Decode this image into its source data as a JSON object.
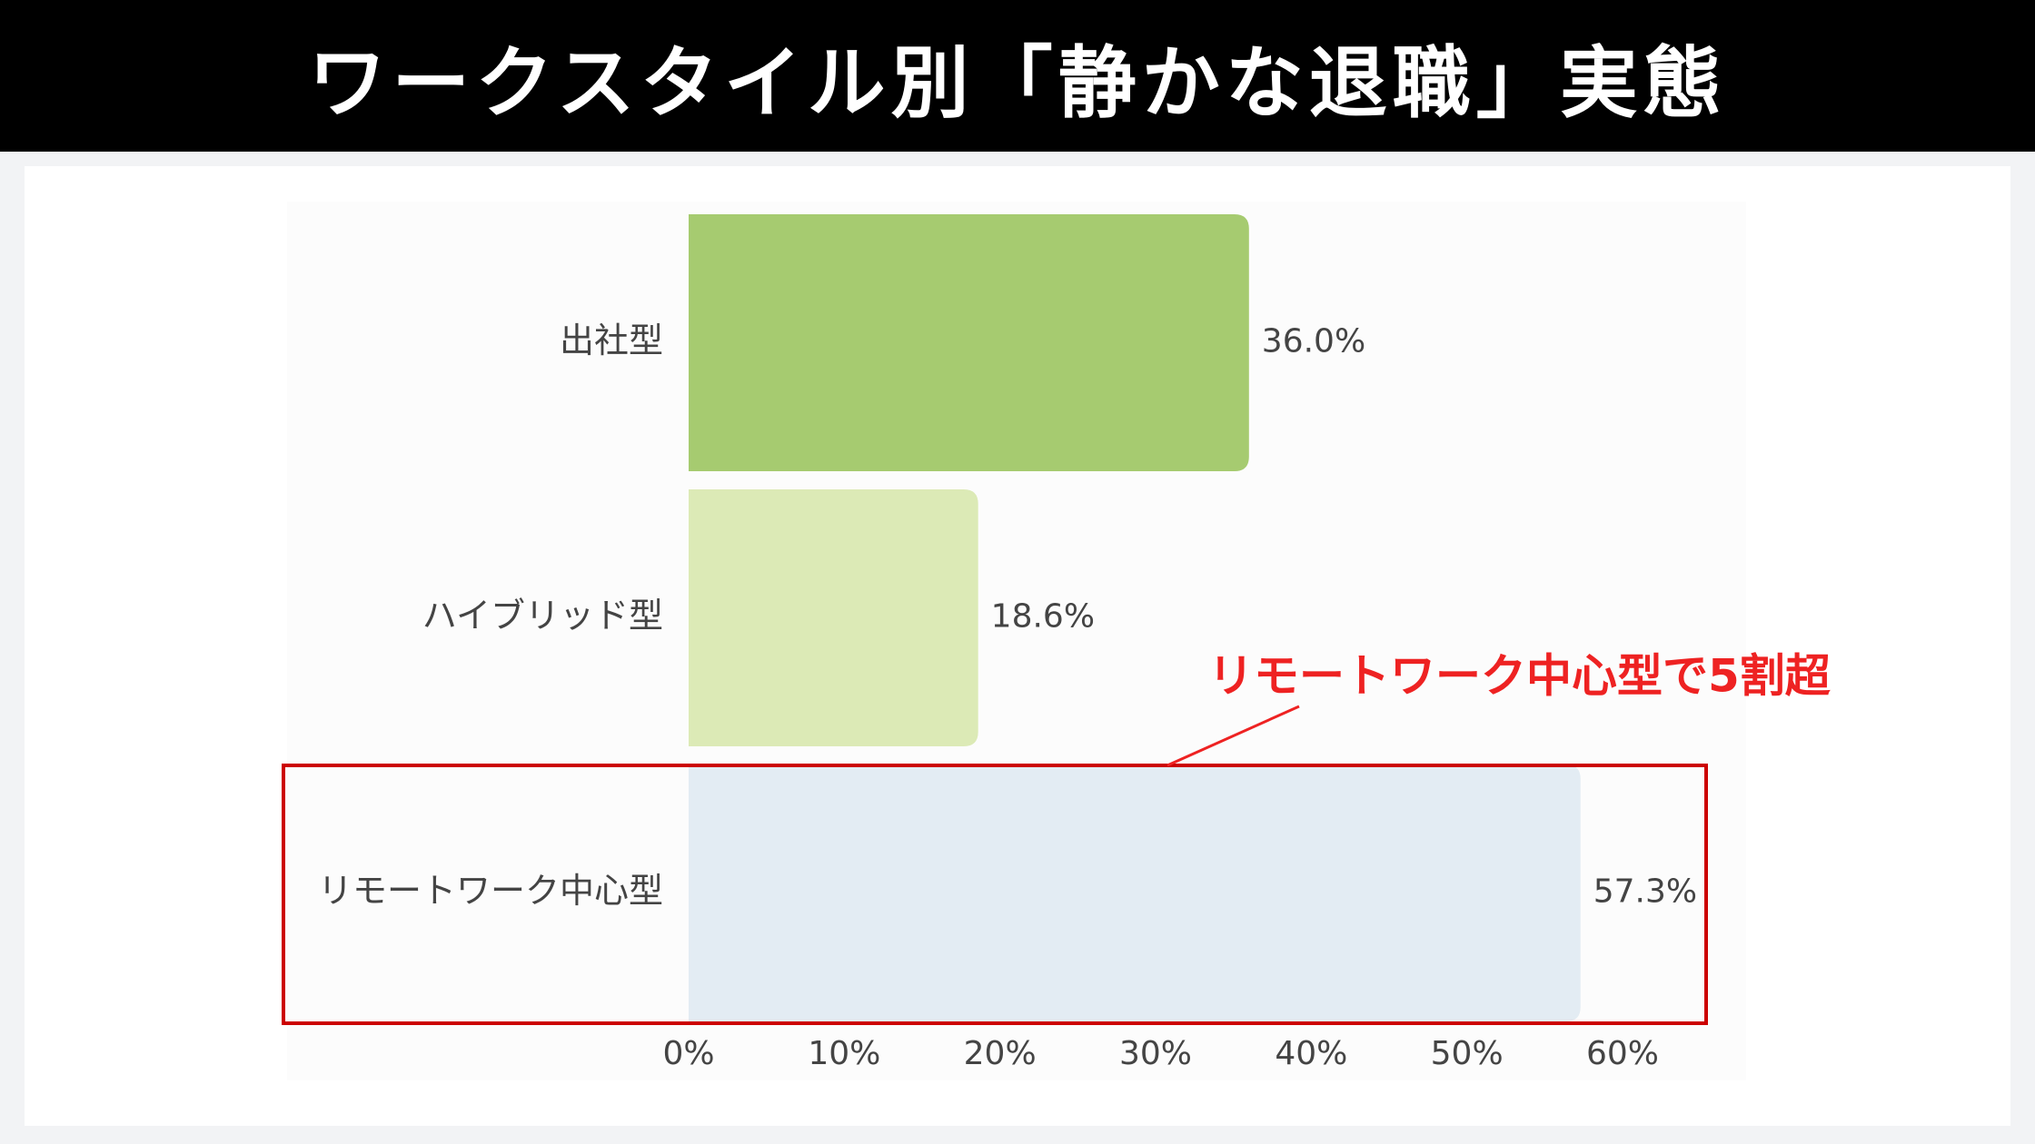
{
  "header": {
    "title": "ワークスタイル別「静かな退職」実態"
  },
  "chart_data": {
    "type": "bar",
    "orientation": "horizontal",
    "categories": [
      "出社型",
      "ハイブリッド型",
      "リモートワーク中心型"
    ],
    "values": [
      36.0,
      18.6,
      57.3
    ],
    "value_labels": [
      "36.0%",
      "18.6%",
      "57.3%"
    ],
    "bar_colors": [
      "#a6cb70",
      "#dceab6",
      "#e3ecf3"
    ],
    "xlim": [
      0,
      60
    ],
    "x_ticks": [
      0,
      10,
      20,
      30,
      40,
      50,
      60
    ],
    "x_tick_labels": [
      "0%",
      "10%",
      "20%",
      "30%",
      "40%",
      "50%",
      "60%"
    ],
    "grid": false,
    "annotation": {
      "text": "リモートワーク中心型で5割超",
      "target": "リモートワーク中心型",
      "color": "#ee2222",
      "box_color": "#cc0000"
    }
  }
}
